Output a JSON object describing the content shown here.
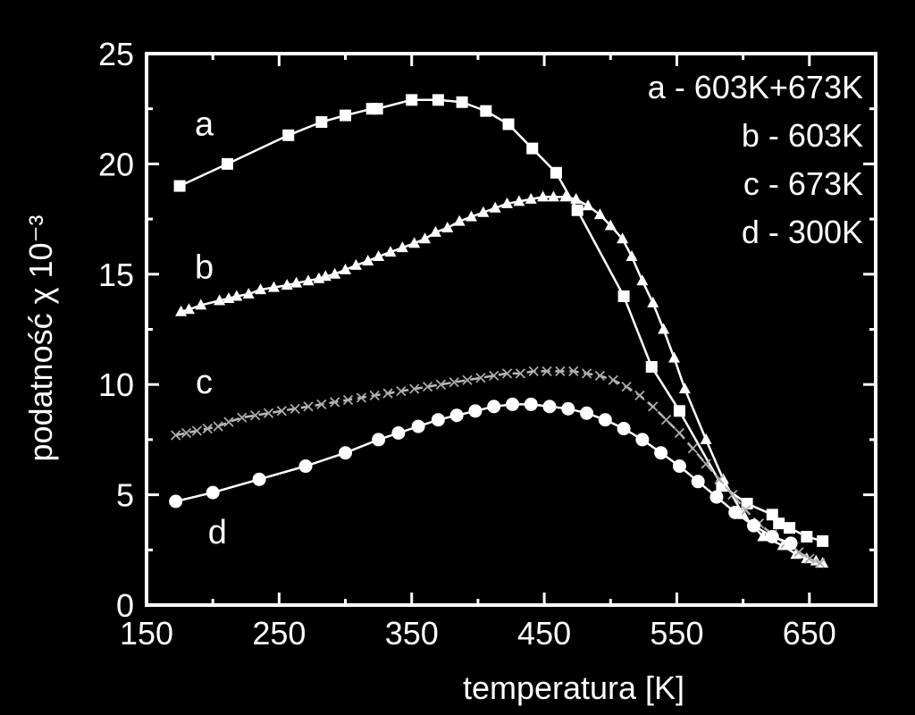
{
  "chart_data": {
    "type": "line",
    "xlabel": "temperatura [K]",
    "ylabel": "podatność χ 10⁻³",
    "xlim": [
      150,
      700
    ],
    "ylim": [
      0,
      25
    ],
    "x_ticks": [
      150,
      250,
      350,
      450,
      550,
      650
    ],
    "y_ticks": [
      0,
      5,
      10,
      15,
      20,
      25
    ],
    "grid": false,
    "legend_position": "top-right",
    "legend": [
      "a - 603K+673K",
      "b - 603K",
      "c - 673K",
      "d - 300K"
    ],
    "series": [
      {
        "name": "a",
        "marker": "square",
        "x": [
          175,
          211,
          257,
          282,
          300,
          320,
          324,
          350,
          370,
          388,
          406,
          423,
          441,
          459,
          475,
          510,
          531,
          552,
          584,
          603,
          622,
          627,
          635,
          648,
          660
        ],
        "y": [
          19.0,
          20.0,
          21.3,
          21.9,
          22.2,
          22.5,
          22.5,
          22.9,
          22.9,
          22.8,
          22.4,
          21.8,
          20.7,
          19.6,
          17.9,
          14.0,
          10.8,
          8.8,
          5.4,
          4.6,
          4.1,
          3.7,
          3.5,
          3.1,
          2.9
        ]
      },
      {
        "name": "b",
        "marker": "triangle",
        "x": [
          176,
          182,
          191,
          205,
          212,
          218,
          227,
          236,
          246,
          256,
          263,
          272,
          280,
          285,
          292,
          300,
          308,
          317,
          325,
          334,
          343,
          352,
          360,
          368,
          377,
          386,
          395,
          404,
          413,
          422,
          431,
          440,
          449,
          457,
          466,
          474,
          483,
          492,
          500,
          509,
          516,
          524,
          532,
          540,
          548,
          556,
          572,
          585,
          600,
          615,
          630,
          640,
          648,
          655,
          660
        ],
        "y": [
          13.3,
          13.4,
          13.6,
          13.8,
          13.9,
          14.0,
          14.1,
          14.3,
          14.4,
          14.5,
          14.6,
          14.7,
          14.8,
          14.9,
          15.0,
          15.2,
          15.4,
          15.6,
          15.8,
          16.0,
          16.2,
          16.4,
          16.6,
          16.9,
          17.1,
          17.4,
          17.6,
          17.8,
          18.0,
          18.2,
          18.3,
          18.4,
          18.5,
          18.5,
          18.5,
          18.4,
          18.1,
          17.7,
          17.2,
          16.6,
          15.8,
          14.7,
          13.7,
          12.5,
          11.2,
          9.8,
          7.5,
          5.7,
          4.1,
          3.1,
          2.7,
          2.3,
          2.1,
          2.0,
          1.9
        ]
      },
      {
        "name": "c",
        "marker": "cross",
        "x": [
          172,
          180,
          188,
          196,
          204,
          212,
          222,
          232,
          242,
          252,
          262,
          272,
          282,
          292,
          302,
          312,
          322,
          332,
          342,
          352,
          362,
          372,
          382,
          392,
          402,
          412,
          422,
          432,
          442,
          452,
          462,
          472,
          482,
          492,
          502,
          512,
          522,
          532,
          542,
          552,
          562,
          572,
          582,
          592,
          602,
          612,
          622,
          632,
          642,
          650,
          658
        ],
        "y": [
          7.7,
          7.8,
          7.9,
          8.0,
          8.1,
          8.3,
          8.5,
          8.6,
          8.7,
          8.8,
          8.9,
          9.0,
          9.1,
          9.2,
          9.3,
          9.4,
          9.5,
          9.6,
          9.7,
          9.8,
          9.9,
          10.0,
          10.1,
          10.2,
          10.3,
          10.4,
          10.5,
          10.5,
          10.6,
          10.6,
          10.6,
          10.6,
          10.5,
          10.4,
          10.2,
          9.9,
          9.5,
          9.0,
          8.4,
          7.8,
          7.1,
          6.4,
          5.7,
          5.0,
          4.3,
          3.7,
          3.2,
          2.8,
          2.4,
          2.1,
          1.9
        ]
      },
      {
        "name": "d",
        "marker": "circle",
        "x": [
          172,
          200,
          235,
          270,
          300,
          325,
          340,
          355,
          370,
          384,
          398,
          412,
          426,
          440,
          454,
          468,
          482,
          496,
          510,
          524,
          538,
          552,
          566,
          580,
          594,
          608,
          622,
          636
        ],
        "y": [
          4.7,
          5.1,
          5.7,
          6.3,
          6.9,
          7.5,
          7.8,
          8.1,
          8.4,
          8.6,
          8.8,
          9.0,
          9.1,
          9.1,
          9.0,
          8.9,
          8.7,
          8.4,
          8.0,
          7.5,
          6.9,
          6.3,
          5.6,
          4.9,
          4.2,
          3.6,
          3.1,
          2.8
        ]
      }
    ],
    "curve_labels": [
      {
        "text": "a",
        "x": 180,
        "y": 21.3
      },
      {
        "text": "b",
        "x": 180,
        "y": 14.8
      },
      {
        "text": "c",
        "x": 180,
        "y": 9.6
      },
      {
        "text": "d",
        "x": 190,
        "y": 2.8
      }
    ]
  }
}
